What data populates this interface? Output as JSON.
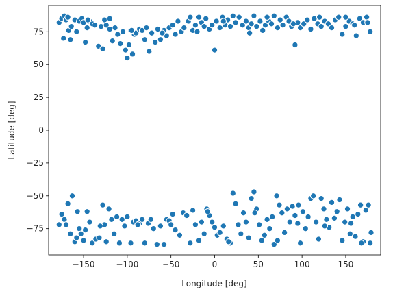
{
  "chart_data": {
    "type": "scatter",
    "xlabel": "Longitude [deg]",
    "ylabel": "Latitude [deg]",
    "xlim": [
      -190,
      190
    ],
    "ylim": [
      -95,
      95
    ],
    "xticks": [
      -150,
      -100,
      -50,
      0,
      50,
      100,
      150
    ],
    "yticks": [
      -75,
      -50,
      -25,
      0,
      25,
      50,
      75
    ],
    "grid": false,
    "marker_color": "#1f77b4",
    "marker_edge_color": "#ffffff",
    "series": [
      {
        "points": [
          [
            -178,
            82
          ],
          [
            -175,
            85
          ],
          [
            -172,
            87
          ],
          [
            -170,
            84
          ],
          [
            -173,
            70
          ],
          [
            -167,
            76
          ],
          [
            -165,
            69
          ],
          [
            -164,
            79
          ],
          [
            -160,
            84
          ],
          [
            -158,
            75
          ],
          [
            -155,
            83
          ],
          [
            -152,
            85
          ],
          [
            -150,
            82
          ],
          [
            -148,
            67
          ],
          [
            -146,
            78
          ],
          [
            -143,
            83
          ],
          [
            -140,
            81
          ],
          [
            -137,
            80
          ],
          [
            -133,
            64
          ],
          [
            -130,
            79
          ],
          [
            -128,
            62
          ],
          [
            -126,
            84
          ],
          [
            -124,
            80
          ],
          [
            -120,
            77
          ],
          [
            -117,
            68
          ],
          [
            -114,
            78
          ],
          [
            -111,
            73
          ],
          [
            -108,
            66
          ],
          [
            -105,
            75
          ],
          [
            -102,
            61
          ],
          [
            -100,
            55
          ],
          [
            -98,
            65
          ],
          [
            -96,
            76
          ],
          [
            -94,
            58
          ],
          [
            -92,
            73
          ],
          [
            -90,
            74
          ],
          [
            -86,
            77
          ],
          [
            -83,
            76
          ],
          [
            -80,
            69
          ],
          [
            -78,
            78
          ],
          [
            -75,
            60
          ],
          [
            -72,
            74
          ],
          [
            -68,
            67
          ],
          [
            -65,
            77
          ],
          [
            -62,
            69
          ],
          [
            -58,
            76
          ],
          [
            -55,
            72
          ],
          [
            -52,
            78
          ],
          [
            -48,
            80
          ],
          [
            -45,
            73
          ],
          [
            -42,
            83
          ],
          [
            -38,
            75
          ],
          [
            -35,
            78
          ],
          [
            -30,
            83
          ],
          [
            -28,
            86
          ],
          [
            -25,
            76
          ],
          [
            -22,
            80
          ],
          [
            -18,
            86
          ],
          [
            -15,
            82
          ],
          [
            -12,
            79
          ],
          [
            -10,
            85
          ],
          [
            -6,
            77
          ],
          [
            -3,
            80
          ],
          [
            0,
            61
          ],
          [
            2,
            83
          ],
          [
            6,
            78
          ],
          [
            9,
            86
          ],
          [
            12,
            80
          ],
          [
            15,
            84
          ],
          [
            18,
            79
          ],
          [
            21,
            87
          ],
          [
            24,
            82
          ],
          [
            28,
            86
          ],
          [
            32,
            80
          ],
          [
            36,
            83
          ],
          [
            39,
            78
          ],
          [
            42,
            81
          ],
          [
            45,
            87
          ],
          [
            48,
            79
          ],
          [
            52,
            83
          ],
          [
            55,
            76
          ],
          [
            58,
            80
          ],
          [
            62,
            83
          ],
          [
            65,
            81
          ],
          [
            68,
            87
          ],
          [
            72,
            78
          ],
          [
            75,
            84
          ],
          [
            78,
            80
          ],
          [
            82,
            86
          ],
          [
            85,
            83
          ],
          [
            88,
            79
          ],
          [
            92,
            65
          ],
          [
            95,
            82
          ],
          [
            98,
            78
          ],
          [
            102,
            81
          ],
          [
            106,
            84
          ],
          [
            110,
            77
          ],
          [
            114,
            85
          ],
          [
            118,
            81
          ],
          [
            122,
            79
          ],
          [
            126,
            83
          ],
          [
            130,
            81
          ],
          [
            134,
            78
          ],
          [
            138,
            84
          ],
          [
            142,
            86
          ],
          [
            146,
            73
          ],
          [
            150,
            79
          ],
          [
            154,
            83
          ],
          [
            158,
            81
          ],
          [
            162,
            72
          ],
          [
            166,
            85
          ],
          [
            170,
            82
          ],
          [
            174,
            86
          ],
          [
            178,
            75
          ],
          [
            -168,
            86
          ],
          [
            -145,
            84
          ],
          [
            -120,
            85
          ],
          [
            -95,
            76
          ],
          [
            -60,
            74
          ],
          [
            -20,
            75
          ],
          [
            10,
            83
          ],
          [
            40,
            74
          ],
          [
            60,
            86
          ],
          [
            90,
            81
          ],
          [
            120,
            86
          ],
          [
            150,
            86
          ],
          [
            160,
            80
          ],
          [
            175,
            82
          ]
        ]
      },
      {
        "points": [
          [
            -178,
            -72
          ],
          [
            -175,
            -64
          ],
          [
            -172,
            -68
          ],
          [
            -170,
            -72
          ],
          [
            -168,
            -56
          ],
          [
            -165,
            -79
          ],
          [
            -163,
            -50
          ],
          [
            -160,
            -85
          ],
          [
            -158,
            -82
          ],
          [
            -155,
            -75
          ],
          [
            -153,
            -79
          ],
          [
            -150,
            -84
          ],
          [
            -148,
            -76
          ],
          [
            -146,
            -62
          ],
          [
            -143,
            -70
          ],
          [
            -140,
            -86
          ],
          [
            -136,
            -83
          ],
          [
            -132,
            -82
          ],
          [
            -128,
            -57
          ],
          [
            -126,
            -72
          ],
          [
            -124,
            -85
          ],
          [
            -121,
            -60
          ],
          [
            -118,
            -68
          ],
          [
            -115,
            -79
          ],
          [
            -112,
            -66
          ],
          [
            -109,
            -86
          ],
          [
            -106,
            -68
          ],
          [
            -103,
            -73
          ],
          [
            -100,
            -66
          ],
          [
            -96,
            -86
          ],
          [
            -93,
            -70
          ],
          [
            -90,
            -69
          ],
          [
            -86,
            -71
          ],
          [
            -83,
            -68
          ],
          [
            -80,
            -86
          ],
          [
            -76,
            -71
          ],
          [
            -73,
            -68
          ],
          [
            -70,
            -75
          ],
          [
            -66,
            -87
          ],
          [
            -62,
            -73
          ],
          [
            -58,
            -87
          ],
          [
            -55,
            -68
          ],
          [
            -52,
            -69
          ],
          [
            -48,
            -64
          ],
          [
            -45,
            -76
          ],
          [
            -40,
            -80
          ],
          [
            -36,
            -63
          ],
          [
            -32,
            -65
          ],
          [
            -28,
            -86
          ],
          [
            -25,
            -61
          ],
          [
            -22,
            -72
          ],
          [
            -18,
            -84
          ],
          [
            -15,
            -70
          ],
          [
            -12,
            -79
          ],
          [
            -9,
            -60
          ],
          [
            -6,
            -65
          ],
          [
            -3,
            -70
          ],
          [
            0,
            -74
          ],
          [
            3,
            -80
          ],
          [
            6,
            -78
          ],
          [
            10,
            -73
          ],
          [
            14,
            -83
          ],
          [
            18,
            -86
          ],
          [
            21,
            -48
          ],
          [
            24,
            -56
          ],
          [
            27,
            -72
          ],
          [
            30,
            -79
          ],
          [
            33,
            -63
          ],
          [
            36,
            -70
          ],
          [
            39,
            -82
          ],
          [
            42,
            -52
          ],
          [
            45,
            -47
          ],
          [
            48,
            -60
          ],
          [
            51,
            -72
          ],
          [
            54,
            -84
          ],
          [
            57,
            -80
          ],
          [
            60,
            -68
          ],
          [
            63,
            -75
          ],
          [
            66,
            -66
          ],
          [
            68,
            -87
          ],
          [
            71,
            -50
          ],
          [
            74,
            -57
          ],
          [
            77,
            -63
          ],
          [
            80,
            -78
          ],
          [
            83,
            -60
          ],
          [
            86,
            -70
          ],
          [
            89,
            -58
          ],
          [
            92,
            -65
          ],
          [
            95,
            -71
          ],
          [
            98,
            -86
          ],
          [
            101,
            -62
          ],
          [
            104,
            -75
          ],
          [
            107,
            -66
          ],
          [
            110,
            -52
          ],
          [
            113,
            -50
          ],
          [
            116,
            -70
          ],
          [
            119,
            -83
          ],
          [
            122,
            -52
          ],
          [
            125,
            -60
          ],
          [
            128,
            -68
          ],
          [
            131,
            -74
          ],
          [
            134,
            -55
          ],
          [
            137,
            -67
          ],
          [
            140,
            -62
          ],
          [
            143,
            -53
          ],
          [
            146,
            -84
          ],
          [
            149,
            -70
          ],
          [
            152,
            -60
          ],
          [
            155,
            -79
          ],
          [
            158,
            -66
          ],
          [
            161,
            -81
          ],
          [
            164,
            -64
          ],
          [
            167,
            -57
          ],
          [
            170,
            -85
          ],
          [
            173,
            -61
          ],
          [
            176,
            -57
          ],
          [
            179,
            -78
          ],
          [
            -157,
            -62
          ],
          [
            -131,
            -73
          ],
          [
            -88,
            -72
          ],
          [
            -50,
            -72
          ],
          [
            -8,
            -62
          ],
          [
            16,
            -85
          ],
          [
            46,
            -63
          ],
          [
            72,
            -84
          ],
          [
            96,
            -57
          ],
          [
            126,
            -73
          ],
          [
            156,
            -71
          ],
          [
            168,
            -86
          ],
          [
            178,
            -86
          ]
        ]
      }
    ]
  }
}
